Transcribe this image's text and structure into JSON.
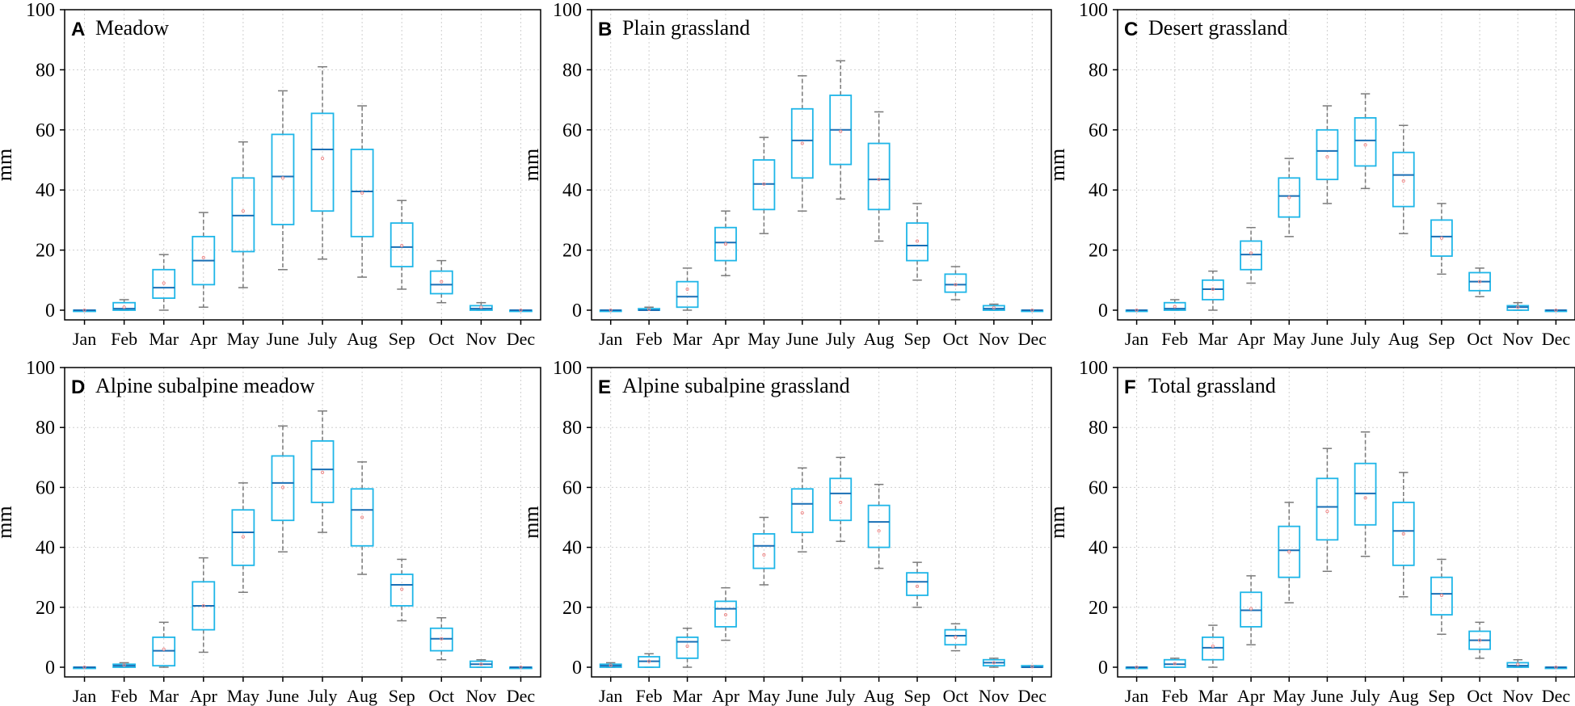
{
  "figure": {
    "colors": {
      "box": "#1fb6e8",
      "median": "#1a6fb5",
      "whisker": "#7a7a7a",
      "mean": "#f08a8a",
      "frame": "#000000",
      "grid": "#cfcfcf"
    }
  },
  "chart_data": [
    {
      "type": "box",
      "letter": "A",
      "title": "Meadow",
      "ylabel": "mm",
      "ylim": [
        0,
        100
      ],
      "yticks": [
        0,
        20,
        40,
        60,
        80,
        100
      ],
      "grid": "dotted",
      "categories": [
        "Jan",
        "Feb",
        "Mar",
        "Apr",
        "May",
        "June",
        "July",
        "Aug",
        "Sep",
        "Oct",
        "Nov",
        "Dec"
      ],
      "boxes": [
        {
          "min": 0,
          "q1": 0,
          "median": 0,
          "q3": 0,
          "max": 0,
          "mean": 0
        },
        {
          "min": 0,
          "q1": 0,
          "median": 0.5,
          "q3": 2.5,
          "max": 3.5,
          "mean": 1
        },
        {
          "min": 0,
          "q1": 4,
          "median": 7.5,
          "q3": 13.5,
          "max": 18.5,
          "mean": 9
        },
        {
          "min": 1,
          "q1": 8.5,
          "median": 16.5,
          "q3": 24.5,
          "max": 32.5,
          "mean": 17.5
        },
        {
          "min": 7.5,
          "q1": 19.5,
          "median": 31.5,
          "q3": 44,
          "max": 56,
          "mean": 33
        },
        {
          "min": 13.5,
          "q1": 28.5,
          "median": 44.5,
          "q3": 58.5,
          "max": 73,
          "mean": 44
        },
        {
          "min": 17,
          "q1": 33,
          "median": 53.5,
          "q3": 65.5,
          "max": 81,
          "mean": 50.5
        },
        {
          "min": 11,
          "q1": 24.5,
          "median": 39.5,
          "q3": 53.5,
          "max": 68,
          "mean": 39
        },
        {
          "min": 7,
          "q1": 14.5,
          "median": 21,
          "q3": 29,
          "max": 36.5,
          "mean": 21.5
        },
        {
          "min": 2.5,
          "q1": 5.5,
          "median": 8.5,
          "q3": 13,
          "max": 16.5,
          "mean": 9.5
        },
        {
          "min": 0,
          "q1": 0,
          "median": 0.5,
          "q3": 1.5,
          "max": 2.5,
          "mean": 1
        },
        {
          "min": 0,
          "q1": 0,
          "median": 0,
          "q3": 0,
          "max": 0,
          "mean": 0
        }
      ]
    },
    {
      "type": "box",
      "letter": "B",
      "title": "Plain grassland",
      "ylabel": "mm",
      "ylim": [
        0,
        100
      ],
      "yticks": [
        0,
        20,
        40,
        60,
        80,
        100
      ],
      "grid": "dotted",
      "categories": [
        "Jan",
        "Feb",
        "Mar",
        "Apr",
        "May",
        "June",
        "July",
        "Aug",
        "Sep",
        "Oct",
        "Nov",
        "Dec"
      ],
      "boxes": [
        {
          "min": 0,
          "q1": 0,
          "median": 0,
          "q3": 0,
          "max": 0,
          "mean": 0
        },
        {
          "min": 0,
          "q1": 0,
          "median": 0,
          "q3": 0.5,
          "max": 1,
          "mean": 0.3
        },
        {
          "min": 0,
          "q1": 1,
          "median": 4.5,
          "q3": 9.5,
          "max": 14,
          "mean": 7
        },
        {
          "min": 11.5,
          "q1": 16.5,
          "median": 22.5,
          "q3": 27.5,
          "max": 33,
          "mean": 22
        },
        {
          "min": 25.5,
          "q1": 33.5,
          "median": 42,
          "q3": 50,
          "max": 57.5,
          "mean": 42
        },
        {
          "min": 33,
          "q1": 44,
          "median": 56.5,
          "q3": 67,
          "max": 78,
          "mean": 55.5
        },
        {
          "min": 37,
          "q1": 48.5,
          "median": 60,
          "q3": 71.5,
          "max": 83,
          "mean": 59.5
        },
        {
          "min": 23,
          "q1": 33.5,
          "median": 43.5,
          "q3": 55.5,
          "max": 66,
          "mean": 43.5
        },
        {
          "min": 10,
          "q1": 16.5,
          "median": 21.5,
          "q3": 29,
          "max": 35.5,
          "mean": 23
        },
        {
          "min": 3.5,
          "q1": 6,
          "median": 8.5,
          "q3": 12,
          "max": 14.5,
          "mean": 8.5
        },
        {
          "min": 0,
          "q1": 0,
          "median": 0.5,
          "q3": 1.5,
          "max": 2,
          "mean": 0.8
        },
        {
          "min": 0,
          "q1": 0,
          "median": 0,
          "q3": 0,
          "max": 0,
          "mean": 0
        }
      ]
    },
    {
      "type": "box",
      "letter": "C",
      "title": "Desert grassland",
      "ylabel": "mm",
      "ylim": [
        0,
        100
      ],
      "yticks": [
        0,
        20,
        40,
        60,
        80,
        100
      ],
      "grid": "dotted",
      "categories": [
        "Jan",
        "Feb",
        "Mar",
        "Apr",
        "May",
        "June",
        "July",
        "Aug",
        "Sep",
        "Oct",
        "Nov",
        "Dec"
      ],
      "boxes": [
        {
          "min": 0,
          "q1": 0,
          "median": 0,
          "q3": 0,
          "max": 0,
          "mean": 0
        },
        {
          "min": 0,
          "q1": 0,
          "median": 0.5,
          "q3": 2.5,
          "max": 3.5,
          "mean": 1.2
        },
        {
          "min": 0,
          "q1": 3.5,
          "median": 7,
          "q3": 10,
          "max": 13,
          "mean": 7
        },
        {
          "min": 9,
          "q1": 13.5,
          "median": 18.5,
          "q3": 23,
          "max": 27.5,
          "mean": 19
        },
        {
          "min": 24.5,
          "q1": 31,
          "median": 38,
          "q3": 44,
          "max": 50.5,
          "mean": 37.5
        },
        {
          "min": 35.5,
          "q1": 43.5,
          "median": 53,
          "q3": 60,
          "max": 68,
          "mean": 51
        },
        {
          "min": 40.5,
          "q1": 48,
          "median": 56.5,
          "q3": 64,
          "max": 72,
          "mean": 55
        },
        {
          "min": 25.5,
          "q1": 34.5,
          "median": 45,
          "q3": 52.5,
          "max": 61.5,
          "mean": 43
        },
        {
          "min": 12,
          "q1": 18,
          "median": 24.5,
          "q3": 30,
          "max": 35.5,
          "mean": 24
        },
        {
          "min": 4.5,
          "q1": 6.5,
          "median": 9.5,
          "q3": 12.5,
          "max": 14,
          "mean": 9.5
        },
        {
          "min": 0,
          "q1": 0,
          "median": 1,
          "q3": 1.5,
          "max": 2.5,
          "mean": 1
        },
        {
          "min": 0,
          "q1": 0,
          "median": 0,
          "q3": 0,
          "max": 0,
          "mean": 0
        }
      ]
    },
    {
      "type": "box",
      "letter": "D",
      "title": "Alpine subalpine meadow",
      "ylabel": "mm",
      "ylim": [
        0,
        100
      ],
      "yticks": [
        0,
        20,
        40,
        60,
        80,
        100
      ],
      "grid": "dotted",
      "categories": [
        "Jan",
        "Feb",
        "Mar",
        "Apr",
        "May",
        "June",
        "July",
        "Aug",
        "Sep",
        "Oct",
        "Nov",
        "Dec"
      ],
      "boxes": [
        {
          "min": 0,
          "q1": 0,
          "median": 0,
          "q3": 0,
          "max": 0,
          "mean": 0
        },
        {
          "min": 0,
          "q1": 0,
          "median": 0.5,
          "q3": 1,
          "max": 1.5,
          "mean": 0.7
        },
        {
          "min": 0,
          "q1": 0.5,
          "median": 5.5,
          "q3": 10,
          "max": 15,
          "mean": 6
        },
        {
          "min": 5,
          "q1": 12.5,
          "median": 20.5,
          "q3": 28.5,
          "max": 36.5,
          "mean": 20.5
        },
        {
          "min": 25,
          "q1": 34,
          "median": 45,
          "q3": 52.5,
          "max": 61.5,
          "mean": 43.5
        },
        {
          "min": 38.5,
          "q1": 49,
          "median": 61.5,
          "q3": 70.5,
          "max": 80.5,
          "mean": 60
        },
        {
          "min": 45,
          "q1": 55,
          "median": 66,
          "q3": 75.5,
          "max": 85.5,
          "mean": 65
        },
        {
          "min": 31,
          "q1": 40.5,
          "median": 52.5,
          "q3": 59.5,
          "max": 68.5,
          "mean": 50
        },
        {
          "min": 15.5,
          "q1": 20.5,
          "median": 27.5,
          "q3": 31,
          "max": 36,
          "mean": 26
        },
        {
          "min": 2.5,
          "q1": 5.5,
          "median": 9.5,
          "q3": 13,
          "max": 16.5,
          "mean": 9.5
        },
        {
          "min": 0,
          "q1": 0,
          "median": 1,
          "q3": 2,
          "max": 2.5,
          "mean": 1
        },
        {
          "min": 0,
          "q1": 0,
          "median": 0,
          "q3": 0,
          "max": 0,
          "mean": 0
        }
      ]
    },
    {
      "type": "box",
      "letter": "E",
      "title": "Alpine subalpine grassland",
      "ylabel": "mm",
      "ylim": [
        0,
        100
      ],
      "yticks": [
        0,
        20,
        40,
        60,
        80,
        100
      ],
      "grid": "dotted",
      "categories": [
        "Jan",
        "Feb",
        "Mar",
        "Apr",
        "May",
        "June",
        "July",
        "Aug",
        "Sep",
        "Oct",
        "Nov",
        "Dec"
      ],
      "boxes": [
        {
          "min": 0,
          "q1": 0,
          "median": 0.5,
          "q3": 1,
          "max": 1.5,
          "mean": 0.6
        },
        {
          "min": 0,
          "q1": 0,
          "median": 2,
          "q3": 3.5,
          "max": 4.5,
          "mean": 2
        },
        {
          "min": 0,
          "q1": 3,
          "median": 8.5,
          "q3": 10,
          "max": 13,
          "mean": 7
        },
        {
          "min": 9,
          "q1": 13.5,
          "median": 19.5,
          "q3": 22,
          "max": 26.5,
          "mean": 17.5
        },
        {
          "min": 27.5,
          "q1": 33,
          "median": 40.5,
          "q3": 44.5,
          "max": 50,
          "mean": 37.5
        },
        {
          "min": 38.5,
          "q1": 45,
          "median": 54.5,
          "q3": 59.5,
          "max": 66.5,
          "mean": 51.5
        },
        {
          "min": 42,
          "q1": 49,
          "median": 58,
          "q3": 63,
          "max": 70,
          "mean": 55
        },
        {
          "min": 33,
          "q1": 40,
          "median": 48.5,
          "q3": 54,
          "max": 61,
          "mean": 45.5
        },
        {
          "min": 20,
          "q1": 24,
          "median": 28.5,
          "q3": 31.5,
          "max": 35,
          "mean": 27
        },
        {
          "min": 5.5,
          "q1": 7.5,
          "median": 10.5,
          "q3": 12.5,
          "max": 14.5,
          "mean": 10
        },
        {
          "min": 0,
          "q1": 0.5,
          "median": 1.5,
          "q3": 2.5,
          "max": 3,
          "mean": 1.5
        },
        {
          "min": 0,
          "q1": 0,
          "median": 0,
          "q3": 0.5,
          "max": 0.5,
          "mean": 0.2
        }
      ]
    },
    {
      "type": "box",
      "letter": "F",
      "title": "Total grassland",
      "ylabel": "mm",
      "ylim": [
        0,
        100
      ],
      "yticks": [
        0,
        20,
        40,
        60,
        80,
        100
      ],
      "grid": "dotted",
      "categories": [
        "Jan",
        "Feb",
        "Mar",
        "Apr",
        "May",
        "June",
        "July",
        "Aug",
        "Sep",
        "Oct",
        "Nov",
        "Dec"
      ],
      "boxes": [
        {
          "min": 0,
          "q1": 0,
          "median": 0,
          "q3": 0,
          "max": 0,
          "mean": 0
        },
        {
          "min": 0,
          "q1": 0,
          "median": 1,
          "q3": 2.5,
          "max": 3,
          "mean": 1.2
        },
        {
          "min": 0,
          "q1": 2.5,
          "median": 6.5,
          "q3": 10,
          "max": 14,
          "mean": 7
        },
        {
          "min": 7.5,
          "q1": 13.5,
          "median": 19,
          "q3": 25,
          "max": 30.5,
          "mean": 19.5
        },
        {
          "min": 21.5,
          "q1": 30,
          "median": 39,
          "q3": 47,
          "max": 55,
          "mean": 38.5
        },
        {
          "min": 32,
          "q1": 42.5,
          "median": 53.5,
          "q3": 63,
          "max": 73,
          "mean": 52
        },
        {
          "min": 37,
          "q1": 47.5,
          "median": 58,
          "q3": 68,
          "max": 78.5,
          "mean": 56.5
        },
        {
          "min": 23.5,
          "q1": 34,
          "median": 45.5,
          "q3": 55,
          "max": 65,
          "mean": 44.5
        },
        {
          "min": 11,
          "q1": 17.5,
          "median": 24.5,
          "q3": 30,
          "max": 36,
          "mean": 24
        },
        {
          "min": 3,
          "q1": 6,
          "median": 9,
          "q3": 12,
          "max": 15,
          "mean": 9
        },
        {
          "min": 0,
          "q1": 0,
          "median": 0.5,
          "q3": 1.5,
          "max": 2.5,
          "mean": 1
        },
        {
          "min": 0,
          "q1": 0,
          "median": 0,
          "q3": 0,
          "max": 0,
          "mean": 0
        }
      ]
    }
  ]
}
